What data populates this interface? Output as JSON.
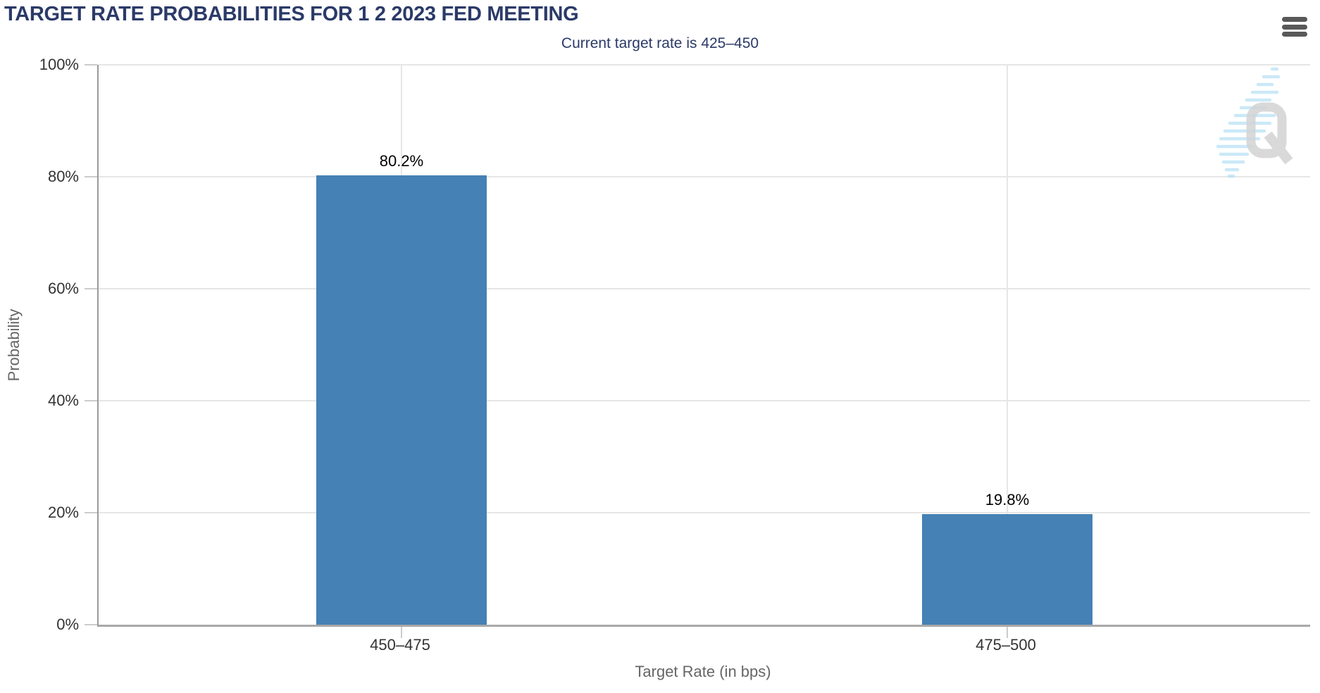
{
  "header": {
    "title": "TARGET RATE PROBABILITIES FOR 1 2 2023 FED MEETING",
    "menu_tooltip": "Chart context menu"
  },
  "chart_data": {
    "type": "bar",
    "title": "TARGET RATE PROBABILITIES FOR 1 2 2023 FED MEETING",
    "subtitle": "Current target rate is 425–450",
    "categories": [
      "450–475",
      "475–500"
    ],
    "values": [
      80.2,
      19.8
    ],
    "data_labels": [
      "80.2%",
      "19.8%"
    ],
    "xlabel": "Target Rate (in bps)",
    "ylabel": "Probability",
    "ylim": [
      0,
      100
    ],
    "ytick_labels": [
      "0%",
      "20%",
      "40%",
      "60%",
      "80%",
      "100%"
    ],
    "grid": true,
    "legend_position": "none",
    "bar_color": "#4581B4"
  },
  "watermark": {
    "letter": "Q"
  },
  "colors": {
    "title_navy": "#2B3A68",
    "bar_blue": "#4581B4",
    "gridline": "#E6E6E6",
    "axis_line": "#9A9A9A",
    "tick": "#CCCCCC",
    "label_gray": "#666666",
    "tick_label": "#333333"
  }
}
